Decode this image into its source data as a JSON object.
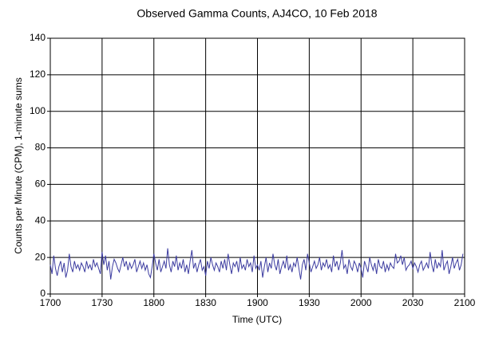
{
  "chart_data": {
    "type": "line",
    "title": "Observed Gamma Counts, AJ4CO, 10 Feb 2018",
    "x_label": "Time (UTC)",
    "y_label": "Counts per Minute (CPM), 1-minute sums",
    "color": "#3c3ca0",
    "grid": true,
    "xlim": [
      "1700",
      "2100"
    ],
    "xticks": [
      "1700",
      "1730",
      "1800",
      "1830",
      "1900",
      "1930",
      "2000",
      "2030",
      "2100"
    ],
    "ylim": [
      0,
      140
    ],
    "yticks": [
      0,
      20,
      40,
      60,
      80,
      100,
      120,
      140
    ],
    "x": [
      "1700",
      "1701",
      "1702",
      "1703",
      "1704",
      "1705",
      "1706",
      "1707",
      "1708",
      "1709",
      "1710",
      "1711",
      "1712",
      "1713",
      "1714",
      "1715",
      "1716",
      "1717",
      "1718",
      "1719",
      "1720",
      "1721",
      "1722",
      "1723",
      "1724",
      "1725",
      "1726",
      "1727",
      "1728",
      "1729",
      "1730",
      "1731",
      "1732",
      "1733",
      "1734",
      "1735",
      "1736",
      "1737",
      "1738",
      "1739",
      "1740",
      "1741",
      "1742",
      "1743",
      "1744",
      "1745",
      "1746",
      "1747",
      "1748",
      "1749",
      "1750",
      "1751",
      "1752",
      "1753",
      "1754",
      "1755",
      "1756",
      "1757",
      "1758",
      "1759",
      "1800",
      "1801",
      "1802",
      "1803",
      "1804",
      "1805",
      "1806",
      "1807",
      "1808",
      "1809",
      "1810",
      "1811",
      "1812",
      "1813",
      "1814",
      "1815",
      "1816",
      "1817",
      "1818",
      "1819",
      "1820",
      "1821",
      "1822",
      "1823",
      "1824",
      "1825",
      "1826",
      "1827",
      "1828",
      "1829",
      "1830",
      "1831",
      "1832",
      "1833",
      "1834",
      "1835",
      "1836",
      "1837",
      "1838",
      "1839",
      "1840",
      "1841",
      "1842",
      "1843",
      "1844",
      "1845",
      "1846",
      "1847",
      "1848",
      "1849",
      "1850",
      "1851",
      "1852",
      "1853",
      "1854",
      "1855",
      "1856",
      "1857",
      "1858",
      "1859",
      "1900",
      "1901",
      "1902",
      "1903",
      "1904",
      "1905",
      "1906",
      "1907",
      "1908",
      "1909",
      "1910",
      "1911",
      "1912",
      "1913",
      "1914",
      "1915",
      "1916",
      "1917",
      "1918",
      "1919",
      "1920",
      "1921",
      "1922",
      "1923",
      "1924",
      "1925",
      "1926",
      "1927",
      "1928",
      "1929",
      "1930",
      "1931",
      "1932",
      "1933",
      "1934",
      "1935",
      "1936",
      "1937",
      "1938",
      "1939",
      "1940",
      "1941",
      "1942",
      "1943",
      "1944",
      "1945",
      "1946",
      "1947",
      "1948",
      "1949",
      "1950",
      "1951",
      "1952",
      "1953",
      "1954",
      "1955",
      "1956",
      "1957",
      "1958",
      "1959",
      "2000",
      "2001",
      "2002",
      "2003",
      "2004",
      "2005",
      "2006",
      "2007",
      "2008",
      "2009",
      "2010",
      "2011",
      "2012",
      "2013",
      "2014",
      "2015",
      "2016",
      "2017",
      "2018",
      "2019",
      "2020",
      "2021",
      "2022",
      "2023",
      "2024",
      "2025",
      "2026",
      "2027",
      "2028",
      "2029",
      "2030",
      "2031",
      "2032",
      "2033",
      "2034",
      "2035",
      "2036",
      "2037",
      "2038",
      "2039",
      "2040",
      "2041",
      "2042",
      "2043",
      "2044",
      "2045",
      "2046",
      "2047",
      "2048",
      "2049",
      "2050",
      "2051",
      "2052",
      "2053",
      "2054",
      "2055",
      "2056",
      "2057",
      "2058",
      "2059"
    ],
    "values": [
      16,
      11,
      21,
      14,
      10,
      15,
      18,
      12,
      17,
      9,
      13,
      22,
      15,
      12,
      18,
      14,
      16,
      13,
      17,
      15,
      12,
      18,
      14,
      16,
      13,
      19,
      15,
      17,
      14,
      11,
      23,
      16,
      21,
      13,
      18,
      8,
      15,
      19,
      17,
      14,
      12,
      16,
      20,
      15,
      18,
      13,
      17,
      14,
      16,
      19,
      12,
      15,
      18,
      14,
      17,
      13,
      16,
      11,
      9,
      15,
      22,
      17,
      13,
      19,
      12,
      15,
      18,
      14,
      25,
      16,
      12,
      18,
      15,
      21,
      13,
      17,
      14,
      19,
      12,
      16,
      11,
      18,
      24,
      14,
      17,
      12,
      16,
      19,
      13,
      15,
      10,
      18,
      14,
      20,
      16,
      13,
      17,
      15,
      12,
      18,
      14,
      19,
      13,
      22,
      16,
      11,
      17,
      15,
      18,
      12,
      20,
      14,
      16,
      13,
      19,
      15,
      17,
      12,
      21,
      14,
      16,
      13,
      18,
      9,
      15,
      20,
      12,
      17,
      14,
      22,
      16,
      13,
      19,
      11,
      15,
      18,
      14,
      21,
      13,
      16,
      12,
      17,
      15,
      20,
      14,
      8,
      16,
      19,
      13,
      22,
      17,
      12,
      15,
      18,
      14,
      16,
      20,
      13,
      17,
      15,
      19,
      14,
      16,
      12,
      21,
      15,
      18,
      13,
      17,
      24,
      14,
      16,
      11,
      19,
      15,
      13,
      18,
      16,
      12,
      17,
      14,
      9,
      18,
      15,
      12,
      20,
      16,
      13,
      17,
      11,
      19,
      15,
      14,
      18,
      12,
      16,
      13,
      17,
      15,
      14,
      22,
      17,
      18,
      21,
      16,
      20,
      13,
      15,
      16,
      18,
      14,
      17,
      15,
      12,
      16,
      18,
      13,
      15,
      17,
      14,
      23,
      16,
      12,
      19,
      14,
      17,
      15,
      24,
      13,
      16,
      18,
      11,
      15,
      20,
      14,
      17,
      19,
      13,
      16,
      22
    ]
  }
}
